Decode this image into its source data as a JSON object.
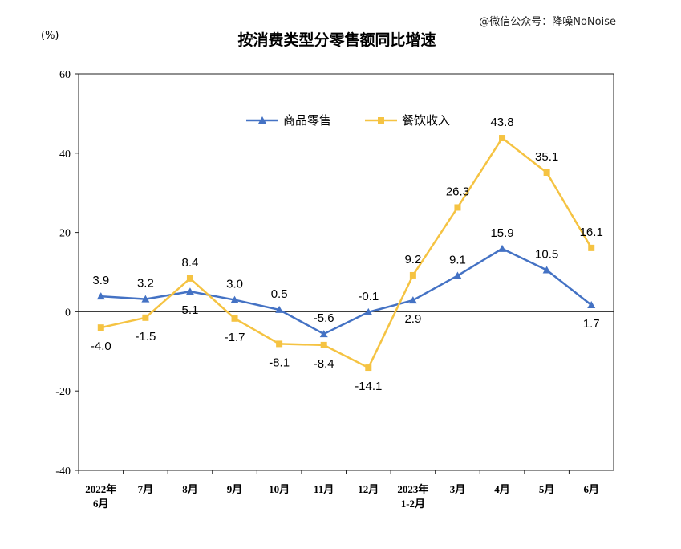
{
  "watermark": "@微信公众号：降噪NoNoise",
  "chart_data": {
    "type": "line",
    "title": "按消费类型分零售额同比增速",
    "unit_label": "(%)",
    "ylim": [
      -40,
      60
    ],
    "yticks": [
      -40,
      -20,
      0,
      20,
      40,
      60
    ],
    "categories": [
      [
        "2022年",
        "6月"
      ],
      [
        "7月"
      ],
      [
        "8月"
      ],
      [
        "9月"
      ],
      [
        "10月"
      ],
      [
        "11月"
      ],
      [
        "12月"
      ],
      [
        "2023年",
        "1-2月"
      ],
      [
        "3月"
      ],
      [
        "4月"
      ],
      [
        "5月"
      ],
      [
        "6月"
      ]
    ],
    "legend_position": "top-center",
    "grid": false,
    "series": [
      {
        "name": "商品零售",
        "color": "#4472C4",
        "marker": "triangle",
        "values": [
          3.9,
          3.2,
          5.1,
          3.0,
          0.5,
          -5.6,
          -0.1,
          2.9,
          9.1,
          15.9,
          10.5,
          1.7
        ],
        "labels": [
          "3.9",
          "3.2",
          "5.1",
          "3.0",
          "0.5",
          "-5.6",
          "-0.1",
          "2.9",
          "9.1",
          "15.9",
          "10.5",
          "1.7"
        ]
      },
      {
        "name": "餐饮收入",
        "color": "#F5C342",
        "marker": "square",
        "values": [
          -4.0,
          -1.5,
          8.4,
          -1.7,
          -8.1,
          -8.4,
          -14.1,
          9.2,
          26.3,
          43.8,
          35.1,
          16.1
        ],
        "labels": [
          "-4.0",
          "-1.5",
          "8.4",
          "-1.7",
          "-8.1",
          "-8.4",
          "-14.1",
          "9.2",
          "26.3",
          "43.8",
          "35.1",
          "16.1"
        ]
      }
    ]
  }
}
